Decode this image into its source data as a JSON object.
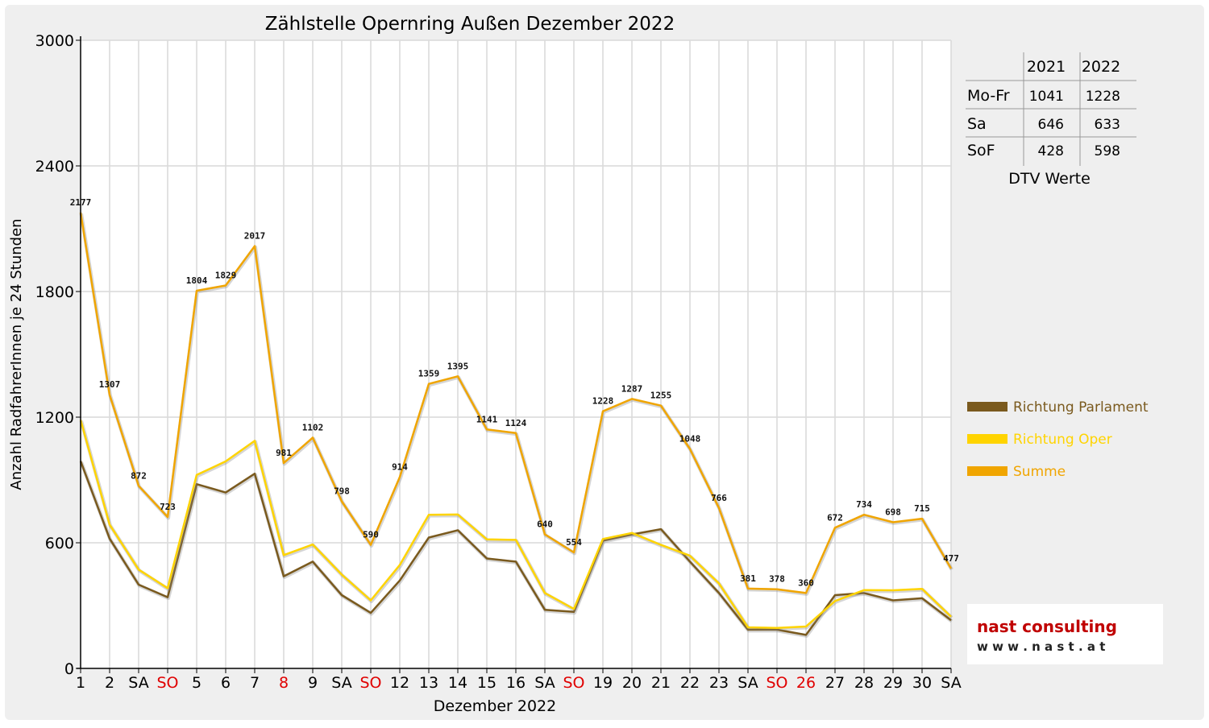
{
  "chart_data": {
    "type": "line",
    "title": "Zählstelle Opernring Außen Dezember 2022",
    "xlabel": "Dezember 2022",
    "ylabel": "Anzahl RadfahrerInnen je 24 Stunden",
    "ylim": [
      0,
      3000
    ],
    "yticks": [
      "0",
      "600",
      "1200",
      "1800",
      "2400",
      "3000"
    ],
    "grid": true,
    "legend_position": "right",
    "categories": [
      "1",
      "2",
      "SA",
      "SO",
      "5",
      "6",
      "7",
      "8",
      "9",
      "SA",
      "SO",
      "12",
      "13",
      "14",
      "15",
      "16",
      "SA",
      "SO",
      "19",
      "20",
      "21",
      "22",
      "23",
      "SA",
      "SO",
      "26",
      "27",
      "28",
      "29",
      "30",
      "SA"
    ],
    "highlighted_categories": [
      3,
      7,
      10,
      17,
      24,
      25
    ],
    "highlight_color": "#e00000",
    "series": [
      {
        "name": "Richtung Parlament",
        "color": "#7a5a1e",
        "values": [
          990,
          620,
          400,
          340,
          880,
          840,
          930,
          440,
          510,
          350,
          265,
          420,
          625,
          660,
          525,
          510,
          280,
          270,
          610,
          640,
          665,
          510,
          360,
          185,
          185,
          160,
          350,
          360,
          325,
          335,
          230
        ]
      },
      {
        "name": "Richtung Oper",
        "color": "#ffd400",
        "values": [
          1187,
          687,
          472,
          383,
          924,
          989,
          1087,
          541,
          592,
          448,
          325,
          494,
          734,
          735,
          616,
          614,
          360,
          284,
          618,
          647,
          590,
          538,
          406,
          196,
          193,
          200,
          322,
          374,
          373,
          380,
          247
        ]
      },
      {
        "name": "Summe",
        "color": "#f0a500",
        "values": [
          2177,
          1307,
          872,
          723,
          1804,
          1829,
          2017,
          981,
          1102,
          798,
          590,
          914,
          1359,
          1395,
          1141,
          1124,
          640,
          554,
          1228,
          1287,
          1255,
          1048,
          766,
          381,
          378,
          360,
          672,
          734,
          698,
          715,
          477
        ],
        "data_labels": [
          "2177",
          "1307",
          "872",
          "723",
          "1804",
          "1829",
          "2017",
          "981",
          "1102",
          "798",
          "590",
          "914",
          "1359",
          "1395",
          "1141",
          "1124",
          "640",
          "554",
          "1228",
          "1287",
          "1255",
          "1048",
          "766",
          "381",
          "378",
          "360",
          "672",
          "734",
          "698",
          "715",
          "477"
        ]
      }
    ],
    "summary_table": {
      "caption": "DTV Werte",
      "columns": [
        "",
        "2021",
        "2022"
      ],
      "rows": [
        [
          "Mo-Fr",
          "1041",
          "1228"
        ],
        [
          "Sa",
          "646",
          "633"
        ],
        [
          "SoF",
          "428",
          "598"
        ]
      ]
    }
  },
  "logo": {
    "name": "nast consulting",
    "url": "w w w . n a s t . a t"
  }
}
